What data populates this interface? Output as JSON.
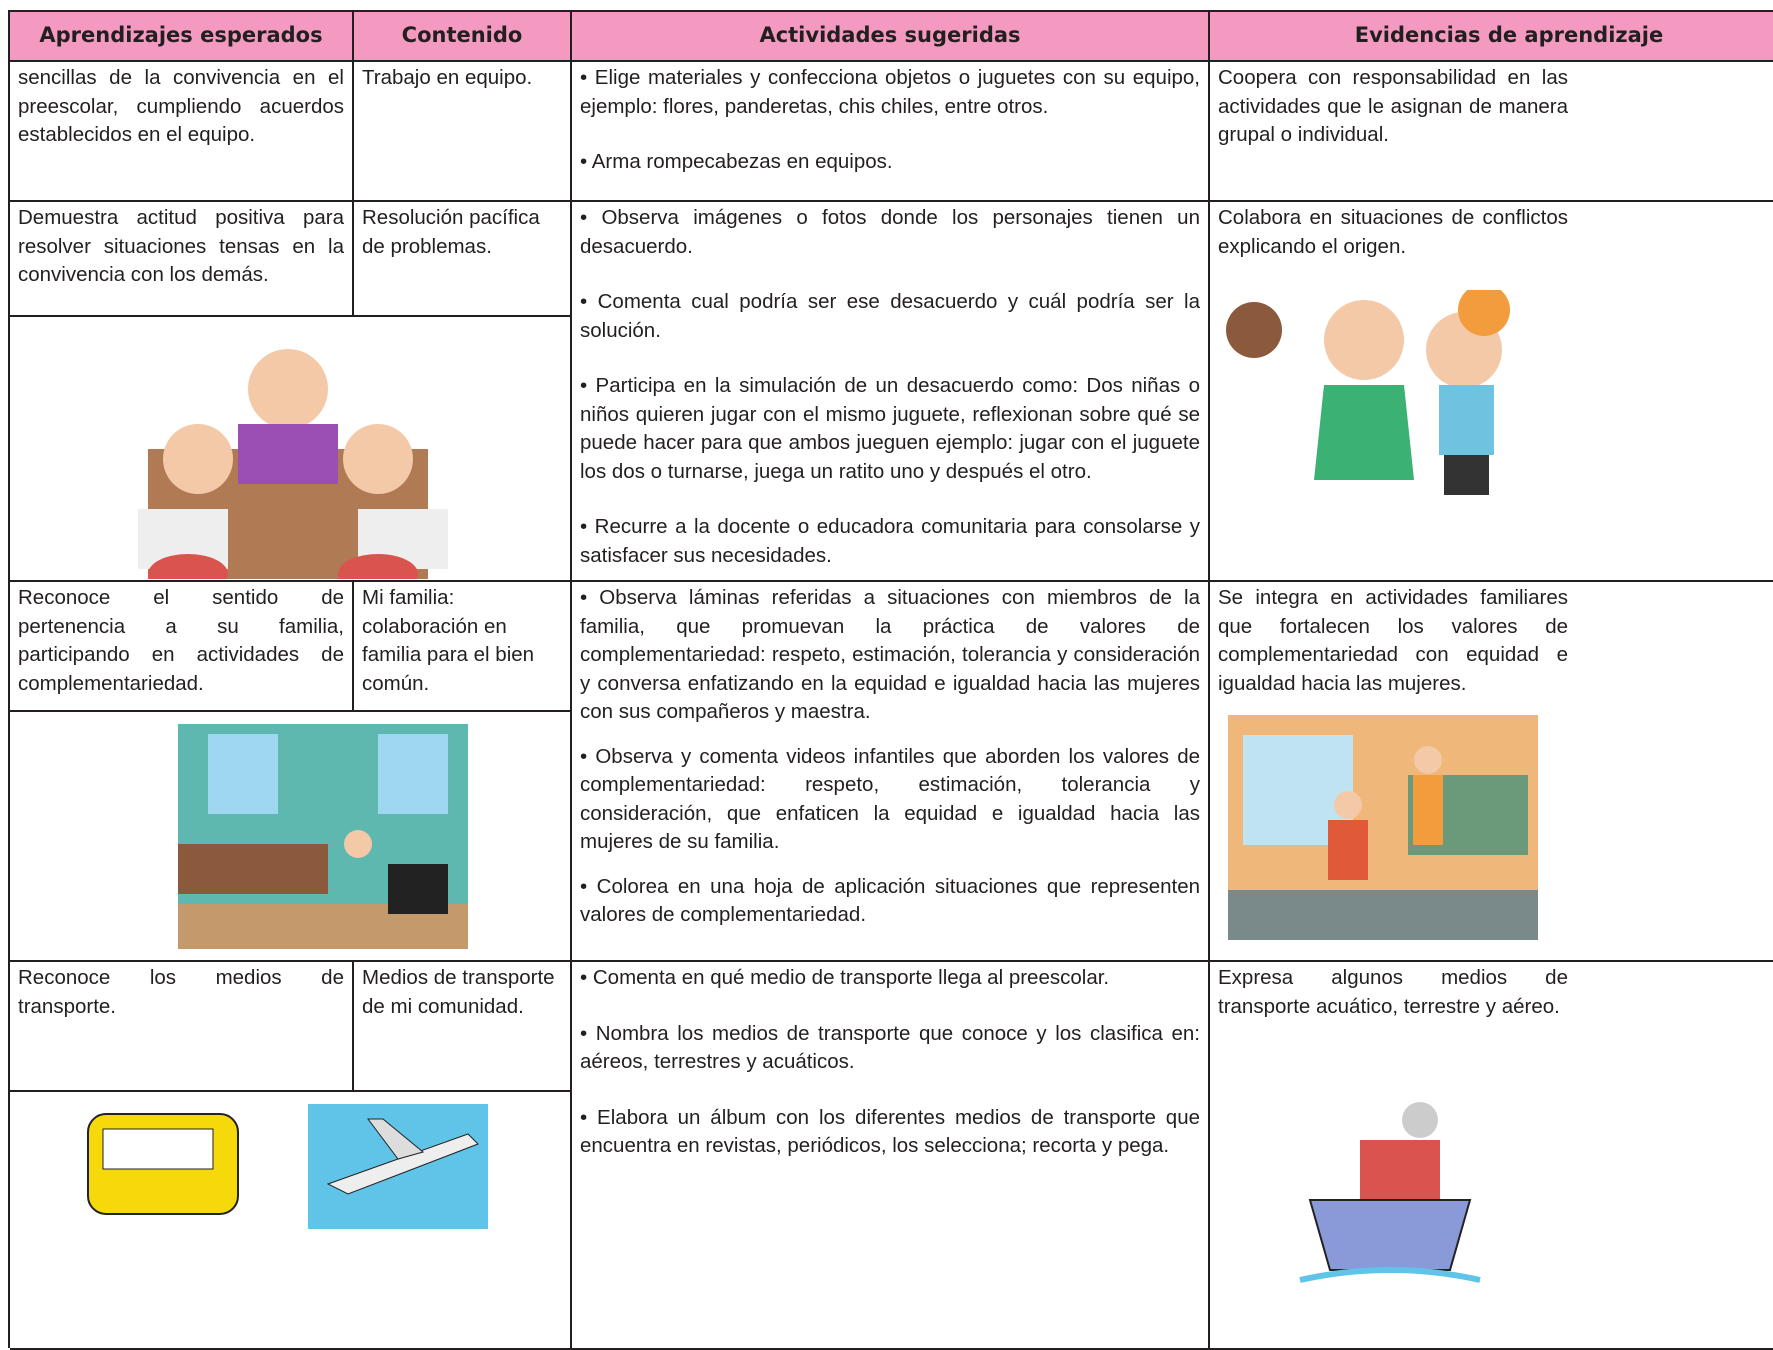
{
  "table": {
    "header": [
      "Aprendizajes esperados",
      "Contenido",
      "Actividades sugeridas",
      "Evidencias de aprendizaje"
    ],
    "rows": [
      {
        "aprendizaje": "sencillas de la convivencia en el preescolar, cumpliendo acuerdos establecidos en el equipo.",
        "contenido": "Trabajo en equipo.",
        "actividades": [
          "• Elige materiales y confecciona objetos o juguetes con su equipo, ejemplo: flores, panderetas, chis chiles, entre otros.",
          "• Arma rompecabezas en equipos."
        ],
        "evidencia": "Coopera con responsabilidad en las actividades que le asignan de manera grupal o individual."
      },
      {
        "aprendizaje": "Demuestra actitud positiva para resolver situaciones tensas en la convivencia con los demás.",
        "contenido": "Resolución pacífica de problemas.",
        "actividades": [
          "• Observa imágenes o fotos donde los personajes tienen un desacuerdo.",
          "• Comenta cual podría ser ese desacuerdo y cuál podría ser la solución.",
          "• Participa en la simulación de un desacuerdo como: Dos niñas o niños quieren jugar con el mismo juguete, reflexionan sobre qué se puede hacer para que ambos jueguen ejemplo: jugar con el juguete los dos o turnarse, juega un ratito uno y después el otro.",
          "• Recurre a la docente o educadora comunitaria para consolarse y satisfacer sus necesidades."
        ],
        "evidencia": "Colabora en situaciones de conflictos explicando el origen."
      },
      {
        "aprendizaje": "Reconoce el sentido de pertenencia a su familia, participando en actividades de complementariedad.",
        "contenido": "Mi familia: colaboración en familia para el bien común.",
        "actividades": [
          "• Observa láminas referidas a situaciones con miembros de la familia, que promuevan la práctica de valores de complementariedad: respeto, estimación, tolerancia y consideración y conversa enfatizando en la equidad e igualdad hacia las mujeres con sus compañeros y maestra.",
          "• Observa y comenta videos infantiles que aborden los valores de complementariedad: respeto, estimación, tolerancia y consideración, que enfaticen la equidad e igualdad hacia las mujeres de su familia.",
          "• Colorea en una hoja de aplicación situaciones que representen valores de complementariedad."
        ],
        "evidencia": "Se integra en actividades familiares que fortalecen los valores de complementariedad con equidad e igualdad hacia las mujeres."
      },
      {
        "aprendizaje": "Reconoce los medios de transporte.",
        "contenido": "Medios de transporte de mi comunidad.",
        "actividades": [
          "• Comenta en qué medio de transporte llega al preescolar.",
          "• Nombra los medios de transporte que conoce y los clasifica en: aéreos, terrestres y acuáticos.",
          "• Elabora un álbum con los diferentes medios de transporte que encuentra en revistas, periódicos, los selecciona; recorta y pega."
        ],
        "evidencia": "Expresa algunos medios de transporte acuático, terrestre y aéreo."
      }
    ]
  }
}
